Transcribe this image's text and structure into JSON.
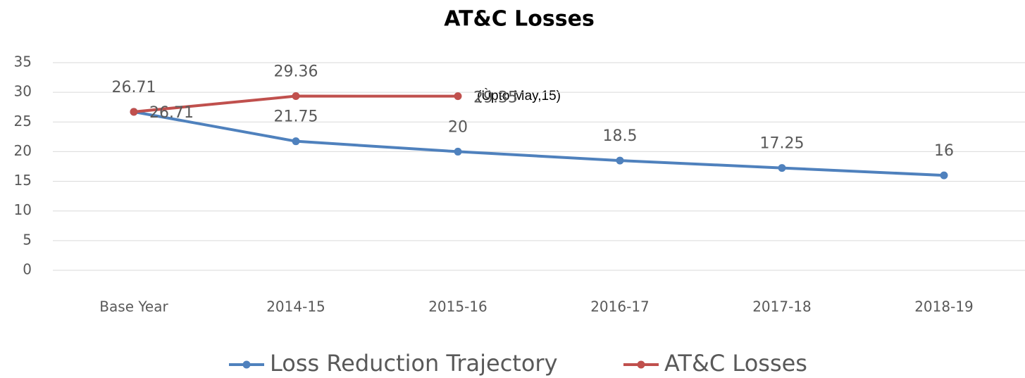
{
  "chart_data": {
    "type": "line",
    "title": "AT&C Losses",
    "categories": [
      "Base Year",
      "2014-15",
      "2015-16",
      "2016-17",
      "2017-18",
      "2018-19"
    ],
    "series": [
      {
        "name": "Loss Reduction Trajectory",
        "color": "#4f81bd",
        "values": [
          26.71,
          21.75,
          20,
          18.5,
          17.25,
          16
        ]
      },
      {
        "name": "AT&C Losses",
        "color": "#c0504d",
        "values": [
          26.71,
          29.36,
          29.35,
          null,
          null,
          null
        ]
      }
    ],
    "annotation": "(Ùpto May,15)",
    "ylim": [
      0,
      35
    ],
    "yticks": [
      0,
      5,
      10,
      15,
      20,
      25,
      30,
      35
    ],
    "grid": true,
    "legend": "bottom"
  }
}
